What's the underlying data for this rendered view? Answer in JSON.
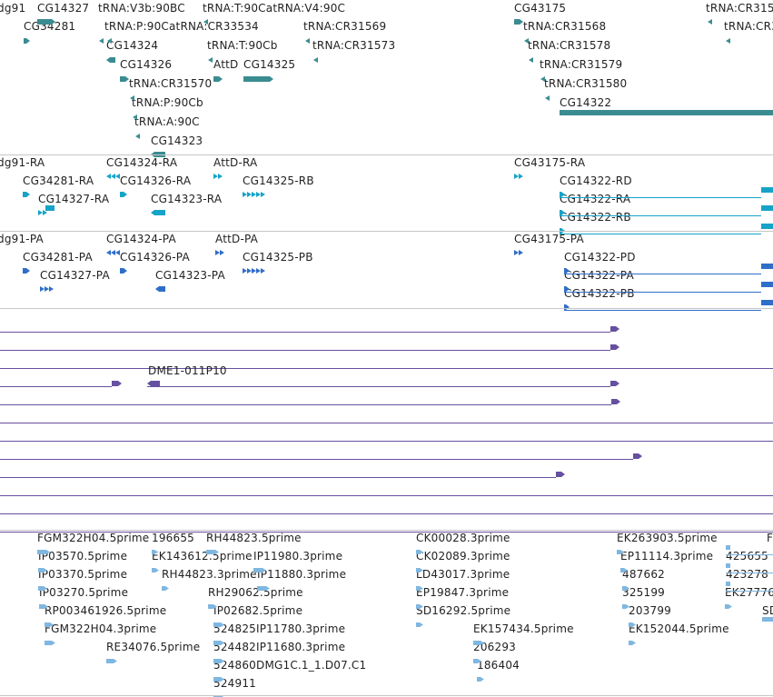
{
  "colors": {
    "gene": "#3a8c91",
    "transcript": "#16a3c8",
    "protein": "#2f6ec8",
    "alignment": "#6650a0",
    "est": "#7fb7e0",
    "separator": "#c6c6c6"
  },
  "tracks": [
    {
      "id": "genes",
      "color": "#3a8c91",
      "features": [
        {
          "label": "dg91",
          "glyph": "none"
        },
        {
          "label": "CG14327",
          "glyph": "right-arrow-bar"
        },
        {
          "label": "CG34281",
          "glyph": "right-arrow-bar"
        },
        {
          "label": "tRNA:V3b:90BC",
          "glyph": "small-triangle"
        },
        {
          "label": "tRNA:P:90CatRNA:CR33534",
          "glyph": "small-triangle"
        },
        {
          "label": "CG14324",
          "glyph": "left-arrow-bar"
        },
        {
          "label": "tRNA:T:90CatRNA:V4:90C",
          "glyph": "small-triangle"
        },
        {
          "label": "tRNA:T:90Cb",
          "glyph": "small-triangle"
        },
        {
          "label": "CG14326",
          "glyph": "right-arrow-bar"
        },
        {
          "label": "AttD",
          "glyph": "right-arrow-bar"
        },
        {
          "label": "CG14325",
          "glyph": "right-arrow-bar"
        },
        {
          "label": "tRNA:CR31570",
          "glyph": "small-triangle"
        },
        {
          "label": "tRNA:P:90Cb",
          "glyph": "small-triangle"
        },
        {
          "label": "tRNA:A:90C",
          "glyph": "small-triangle"
        },
        {
          "label": "CG14323",
          "glyph": "left-arrow-bar"
        },
        {
          "label": "tRNA:CR31569",
          "glyph": "small-triangle"
        },
        {
          "label": "tRNA:CR31573",
          "glyph": "small-triangle"
        },
        {
          "label": "CG43175",
          "glyph": "right-arrow-bar"
        },
        {
          "label": "tRNA:CR31568",
          "glyph": "small-triangle"
        },
        {
          "label": "tRNA:CR31578",
          "glyph": "small-triangle"
        },
        {
          "label": "tRNA:CR31579",
          "glyph": "small-triangle"
        },
        {
          "label": "tRNA:CR31580",
          "glyph": "small-triangle"
        },
        {
          "label": "CG14322",
          "glyph": "long-bar"
        },
        {
          "label": "tRNA:CR315",
          "glyph": "small-triangle"
        },
        {
          "label": "tRNA:CR3",
          "glyph": "small-triangle"
        }
      ]
    },
    {
      "id": "transcripts",
      "color": "#16a3c8",
      "features": [
        {
          "label": "dg91-RA"
        },
        {
          "label": "CG14324-RA"
        },
        {
          "label": "AttD-RA"
        },
        {
          "label": "CG43175-RA"
        },
        {
          "label": "CG34281-RA"
        },
        {
          "label": "CG14326-RA"
        },
        {
          "label": "CG14325-RB"
        },
        {
          "label": "CG14322-RD"
        },
        {
          "label": "CG14327-RA"
        },
        {
          "label": "CG14323-RA"
        },
        {
          "label": "CG14322-RA"
        },
        {
          "label": "CG14322-RB"
        }
      ]
    },
    {
      "id": "proteins",
      "color": "#2f6ec8",
      "features": [
        {
          "label": "dg91-PA"
        },
        {
          "label": "CG14324-PA"
        },
        {
          "label": "AttD-PA"
        },
        {
          "label": "CG43175-PA"
        },
        {
          "label": "CG34281-PA"
        },
        {
          "label": "CG14326-PA"
        },
        {
          "label": "CG14325-PB"
        },
        {
          "label": "CG14322-PD"
        },
        {
          "label": "CG14327-PA"
        },
        {
          "label": "CG14323-PA"
        },
        {
          "label": "CG14322-PA"
        },
        {
          "label": "CG14322-PB"
        }
      ]
    },
    {
      "id": "alignments",
      "color": "#6650a0",
      "features": [
        {
          "label": "DME1-011P10"
        }
      ]
    },
    {
      "id": "ests",
      "color": "#7fb7e0",
      "features": [
        {
          "label": "FGM322H04.5prime"
        },
        {
          "label": "196655"
        },
        {
          "label": "RH44823.5prime"
        },
        {
          "label": "IP03570.5prime"
        },
        {
          "label": "EK143612.5prime"
        },
        {
          "label": "IP11980.3prime"
        },
        {
          "label": "IP03370.5prime"
        },
        {
          "label": "RH44823.3prime"
        },
        {
          "label": "IP11880.3prime"
        },
        {
          "label": "IP03270.5prime"
        },
        {
          "label": "RH29062.5prime"
        },
        {
          "label": "RP003461926.5prime"
        },
        {
          "label": "IP02682.5prime"
        },
        {
          "label": "FGM322H04.3prime"
        },
        {
          "label": "524825IP11780.3prime"
        },
        {
          "label": "RE34076.5prime"
        },
        {
          "label": "524482IP11680.3prime"
        },
        {
          "label": "524860DMG1C.1_1.D07.C1"
        },
        {
          "label": "524911"
        },
        {
          "label": "CK00028.3prime"
        },
        {
          "label": "CK02089.3prime"
        },
        {
          "label": "LD43017.3prime"
        },
        {
          "label": "EP19847.3prime"
        },
        {
          "label": "SD16292.5prime"
        },
        {
          "label": "EK157434.5prime"
        },
        {
          "label": "206293"
        },
        {
          "label": "186404"
        },
        {
          "label": "EK263903.5prime"
        },
        {
          "label": "F"
        },
        {
          "label": "EP11114.3prime"
        },
        {
          "label": "425655"
        },
        {
          "label": "487662"
        },
        {
          "label": "423278"
        },
        {
          "label": "EK27776"
        },
        {
          "label": "325199"
        },
        {
          "label": "203799"
        },
        {
          "label": "SD"
        },
        {
          "label": "EK152044.5prime"
        }
      ]
    }
  ]
}
